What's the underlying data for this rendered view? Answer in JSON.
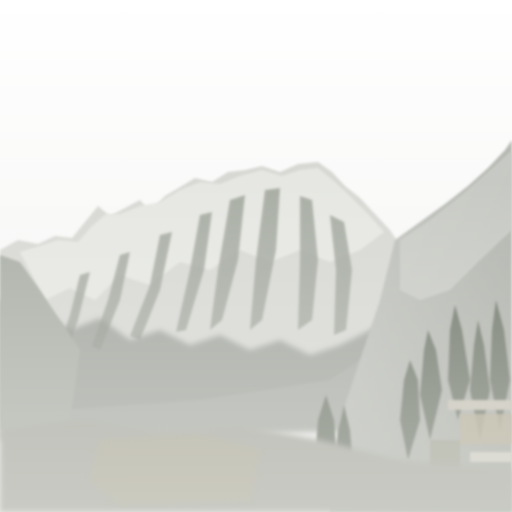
{
  "scene": {
    "palette": {
      "sky": "#fbfbfb",
      "sky_haze": "#f3f3f2",
      "snow": "#e4e4e0",
      "snow_shadow": "#c9cbc5",
      "rock": "#9ea39a",
      "rock_dark": "#7f857d",
      "slope": "#b8bab3",
      "forest": "#6f7568",
      "ground": "#a9a99e",
      "field": "#b9b29c",
      "fog": "#e9e9e6"
    }
  }
}
